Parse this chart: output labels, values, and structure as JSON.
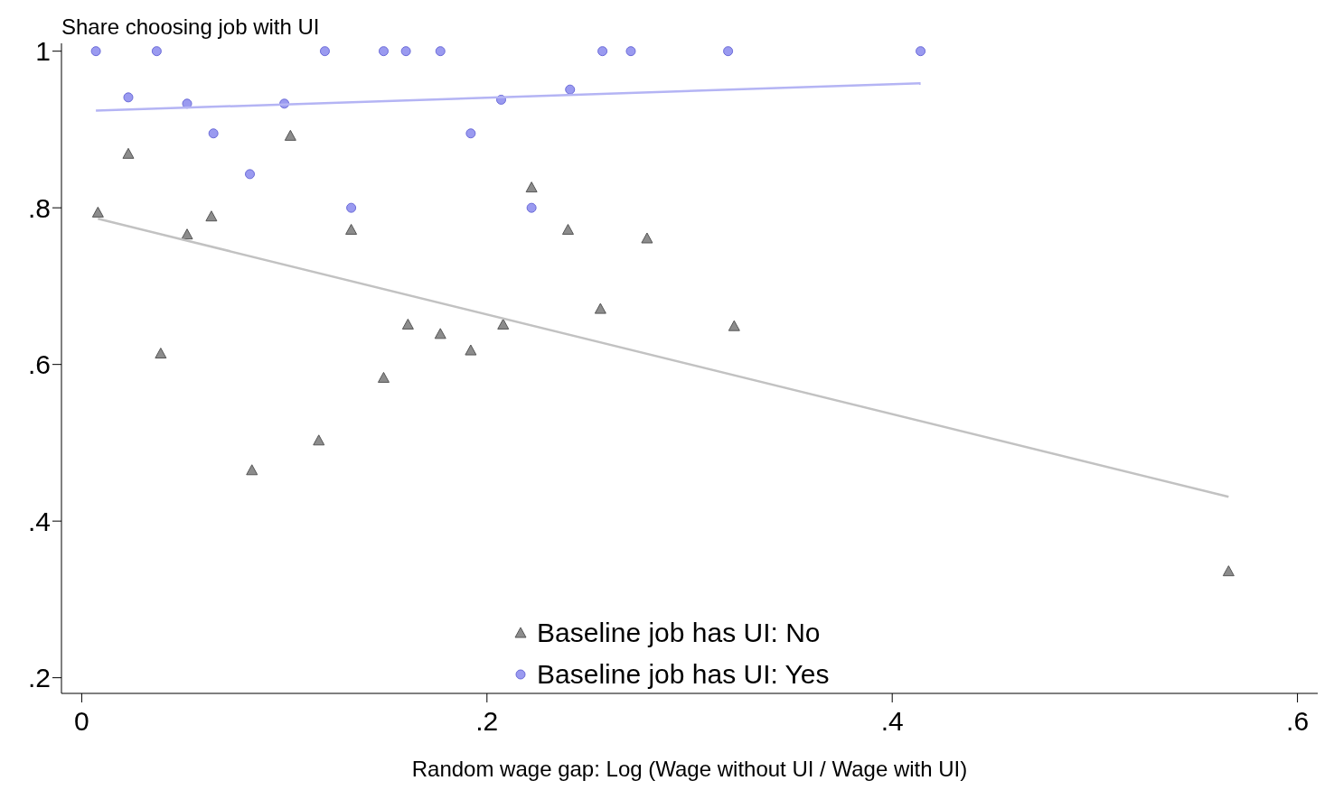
{
  "chart_data": {
    "type": "scatter",
    "ylabel": "Share choosing job with UI",
    "xlabel": "Random wage gap: Log (Wage without UI / Wage with UI)",
    "xlim": [
      -0.01,
      0.61
    ],
    "xticks": [
      0,
      {
        "value": 0.2,
        "label": ".2"
      },
      {
        "value": 0.4,
        "label": ".4"
      },
      {
        "value": 0.6,
        "label": ".6"
      }
    ],
    "ylim": [
      0.18,
      1.01
    ],
    "yticks": [
      {
        "value": 0.2,
        "label": ".2"
      },
      {
        "value": 0.4,
        "label": ".4"
      },
      {
        "value": 0.6,
        "label": ".6"
      },
      {
        "value": 0.8,
        "label": ".8"
      },
      1
    ],
    "grid": false,
    "legend": "bottom",
    "series": [
      {
        "name": "Baseline job has UI: No",
        "marker": "triangle",
        "color": "#8c8c8c",
        "x": [
          0.008,
          0.023,
          0.039,
          0.052,
          0.064,
          0.084,
          0.103,
          0.117,
          0.133,
          0.149,
          0.161,
          0.177,
          0.192,
          0.208,
          0.222,
          0.24,
          0.256,
          0.279,
          0.322,
          0.566
        ],
        "values": [
          0.794,
          0.869,
          0.614,
          0.766,
          0.789,
          0.465,
          0.892,
          0.503,
          0.772,
          0.583,
          0.651,
          0.639,
          0.618,
          0.651,
          0.826,
          0.772,
          0.671,
          0.761,
          0.649,
          0.336
        ]
      },
      {
        "name": "Baseline job has UI: Yes",
        "marker": "circle",
        "color": "#9a9af0",
        "x": [
          0.007,
          0.023,
          0.037,
          0.052,
          0.065,
          0.083,
          0.1,
          0.12,
          0.133,
          0.149,
          0.16,
          0.177,
          0.192,
          0.207,
          0.222,
          0.241,
          0.257,
          0.271,
          0.319,
          0.414
        ],
        "values": [
          1,
          0.941,
          1,
          0.933,
          0.895,
          0.843,
          0.933,
          1,
          0.8,
          1,
          1,
          1,
          0.895,
          0.938,
          0.8,
          0.951,
          1,
          1,
          1,
          1
        ]
      },
      {
        "type": "line",
        "marker": "none",
        "color": "#c2c2c2",
        "x": [
          0.008,
          0.566
        ],
        "values": [
          0.786,
          0.431
        ]
      },
      {
        "type": "line",
        "marker": "none",
        "color": "#b4b4f4",
        "x": [
          0.007,
          0.414
        ],
        "values": [
          0.924,
          0.959
        ]
      }
    ]
  }
}
